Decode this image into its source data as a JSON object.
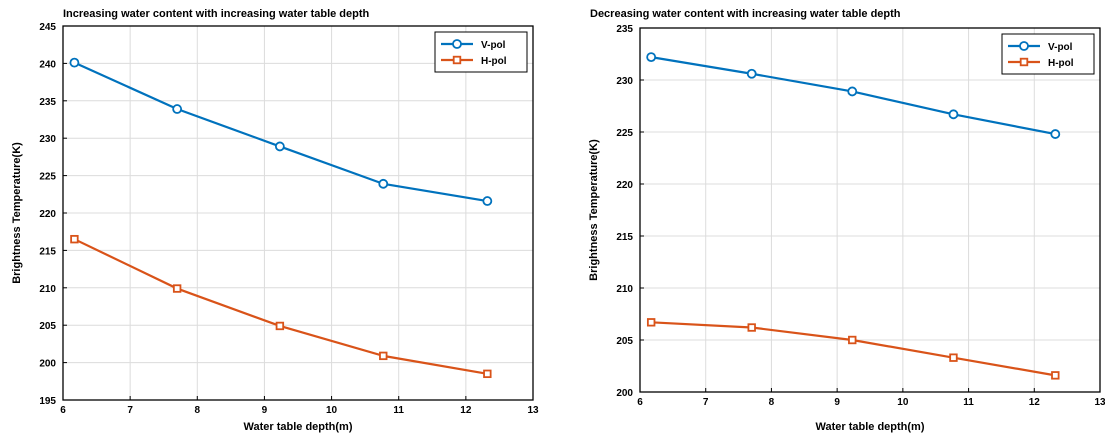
{
  "chart_data": [
    {
      "type": "line",
      "title": "Increasing water content with increasing water table depth",
      "xlabel": "Water table depth(m)",
      "ylabel": "Brightness Temperature(K)",
      "xlim": [
        6,
        13
      ],
      "ylim": [
        195,
        245
      ],
      "xticks": [
        6,
        7,
        8,
        9,
        10,
        11,
        12,
        13
      ],
      "yticks": [
        195,
        200,
        205,
        210,
        215,
        220,
        225,
        230,
        235,
        240,
        245
      ],
      "grid": true,
      "legend_position": "top-right",
      "x": [
        6.17,
        7.7,
        9.23,
        10.77,
        12.32
      ],
      "series": [
        {
          "name": "V-pol",
          "marker": "circle",
          "color": "#0072BD",
          "values": [
            240.1,
            233.9,
            228.9,
            223.9,
            221.6
          ]
        },
        {
          "name": "H-pol",
          "marker": "square",
          "color": "#D95319",
          "values": [
            216.5,
            209.9,
            204.9,
            200.9,
            198.5
          ]
        }
      ]
    },
    {
      "type": "line",
      "title": "Decreasing water content with increasing water table depth",
      "xlabel": "Water table depth(m)",
      "ylabel": "Brightness Temperature(K)",
      "xlim": [
        6,
        13
      ],
      "ylim": [
        200,
        235
      ],
      "xticks": [
        6,
        7,
        8,
        9,
        10,
        11,
        12,
        13
      ],
      "yticks": [
        200,
        205,
        210,
        215,
        220,
        225,
        230,
        235
      ],
      "grid": true,
      "legend_position": "top-right",
      "x": [
        6.17,
        7.7,
        9.23,
        10.77,
        12.32
      ],
      "series": [
        {
          "name": "V-pol",
          "marker": "circle",
          "color": "#0072BD",
          "values": [
            232.2,
            230.6,
            228.9,
            226.7,
            224.8
          ]
        },
        {
          "name": "H-pol",
          "marker": "square",
          "color": "#D95319",
          "values": [
            206.7,
            206.2,
            205.0,
            203.3,
            201.6
          ]
        }
      ]
    }
  ]
}
